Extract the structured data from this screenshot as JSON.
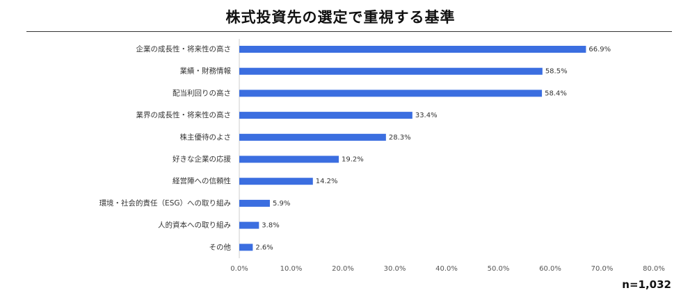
{
  "title": "株式投資先の選定で重視する基準",
  "sample_size": "n=1,032",
  "chart_data": {
    "type": "bar",
    "orientation": "horizontal",
    "title": "株式投資先の選定で重視する基準",
    "xlabel": "",
    "ylabel": "",
    "xlim": [
      0,
      80
    ],
    "tick_values": [
      0,
      10,
      20,
      30,
      40,
      50,
      60,
      70,
      80
    ],
    "tick_labels": [
      "0.0%",
      "10.0%",
      "20.0%",
      "30.0%",
      "40.0%",
      "50.0%",
      "60.0%",
      "70.0%",
      "80.0%"
    ],
    "grid": false,
    "bar_color": "#3b6ee0",
    "categories": [
      "企業の成長性・将来性の高さ",
      "業績・財務情報",
      "配当利回りの高さ",
      "業界の成長性・将来性の高さ",
      "株主優待のよさ",
      "好きな企業の応援",
      "経営陣への信頼性",
      "環境・社会的責任（ESG）への取り組み",
      "人的資本への取り組み",
      "その他"
    ],
    "values": [
      66.9,
      58.5,
      58.4,
      33.4,
      28.3,
      19.2,
      14.2,
      5.9,
      3.8,
      2.6
    ],
    "value_labels": [
      "66.9%",
      "58.5%",
      "58.4%",
      "33.4%",
      "28.3%",
      "19.2%",
      "14.2%",
      "5.9%",
      "3.8%",
      "2.6%"
    ]
  }
}
